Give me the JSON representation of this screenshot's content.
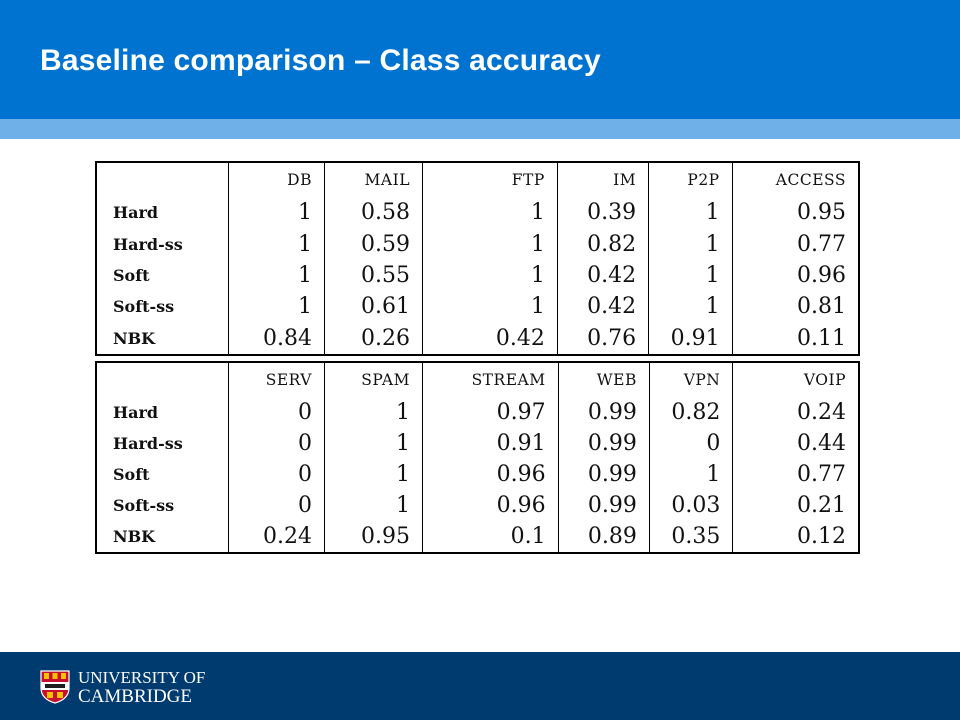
{
  "slide": {
    "title": "Baseline comparison – Class accuracy"
  },
  "colors": {
    "header_bg": "#0072CF",
    "stripe": "#6FB0E8",
    "footer_bg": "#003B6F"
  },
  "table_a": {
    "columns": [
      "DB",
      "MAIL",
      "FTP",
      "IM",
      "P2P",
      "ACCESS"
    ],
    "rows": [
      {
        "label": "Hard",
        "values": [
          "1",
          "0.58",
          "1",
          "0.39",
          "1",
          "0.95"
        ]
      },
      {
        "label": "Hard-ss",
        "values": [
          "1",
          "0.59",
          "1",
          "0.82",
          "1",
          "0.77"
        ]
      },
      {
        "label": "Soft",
        "values": [
          "1",
          "0.55",
          "1",
          "0.42",
          "1",
          "0.96"
        ]
      },
      {
        "label": "Soft-ss",
        "values": [
          "1",
          "0.61",
          "1",
          "0.42",
          "1",
          "0.81"
        ]
      },
      {
        "label": "NBK",
        "values": [
          "0.84",
          "0.26",
          "0.42",
          "0.76",
          "0.91",
          "0.11"
        ]
      }
    ]
  },
  "table_b": {
    "columns": [
      "SERV",
      "SPAM",
      "STREAM",
      "WEB",
      "VPN",
      "VOIP"
    ],
    "rows": [
      {
        "label": "Hard",
        "values": [
          "0",
          "1",
          "0.97",
          "0.99",
          "0.82",
          "0.24"
        ]
      },
      {
        "label": "Hard-ss",
        "values": [
          "0",
          "1",
          "0.91",
          "0.99",
          "0",
          "0.44"
        ]
      },
      {
        "label": "Soft",
        "values": [
          "0",
          "1",
          "0.96",
          "0.99",
          "1",
          "0.77"
        ]
      },
      {
        "label": "Soft-ss",
        "values": [
          "0",
          "1",
          "0.96",
          "0.99",
          "0.03",
          "0.21"
        ]
      },
      {
        "label": "NBK",
        "values": [
          "0.24",
          "0.95",
          "0.1",
          "0.89",
          "0.35",
          "0.12"
        ]
      }
    ]
  },
  "footer": {
    "logo_line1": "UNIVERSITY OF",
    "logo_line2": "CAMBRIDGE",
    "crest_icon": "cambridge-crest-icon"
  }
}
